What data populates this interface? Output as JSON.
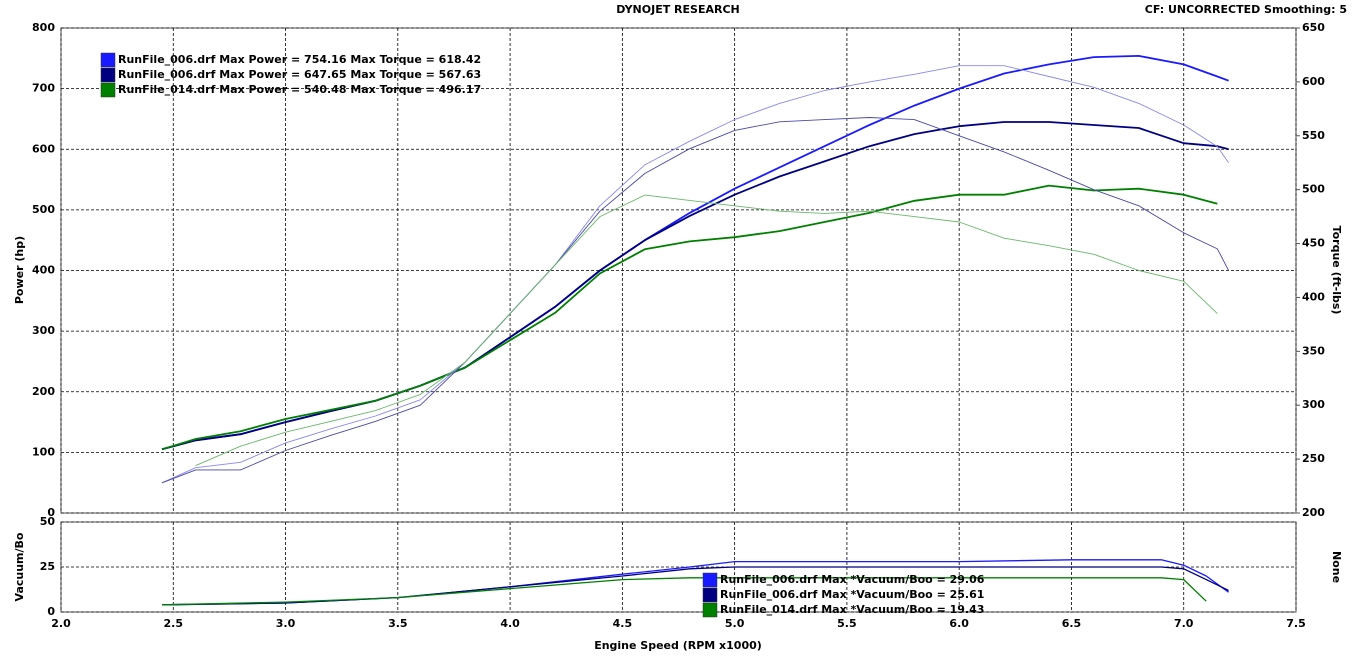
{
  "chart_data": [
    {
      "type": "line",
      "title": "DYNOJET RESEARCH",
      "subtitle": "CF: UNCORRECTED  Smoothing: 5",
      "ylabel": "Power (hp)",
      "y2label": "Torque (ft-lbs)",
      "xlim": [
        2,
        7.5
      ],
      "xticks": [
        2,
        2.5,
        3,
        3.5,
        4,
        4.5,
        5,
        5.5,
        6,
        6.5,
        7,
        7.5
      ],
      "ylim": [
        0,
        800
      ],
      "yticks": [
        0,
        100,
        200,
        300,
        400,
        500,
        600,
        700,
        800
      ],
      "y2lim": [
        200,
        650
      ],
      "y2ticks": [
        200,
        250,
        300,
        350,
        400,
        450,
        500,
        550,
        600,
        650
      ],
      "grid": true,
      "legend": [
        {
          "text": "RunFile_006.drf Max Power = 754.16 Max Torque = 618.42",
          "color": "#1a1aff"
        },
        {
          "text": "RunFile_006.drf Max Power = 647.65 Max Torque = 567.63",
          "color": "#000080"
        },
        {
          "text": "RunFile_014.drf Max Power = 540.48 Max Torque = 496.17",
          "color": "#008000"
        }
      ],
      "x": [
        2.45,
        2.6,
        2.8,
        3.0,
        3.2,
        3.4,
        3.6,
        3.8,
        4.0,
        4.2,
        4.4,
        4.6,
        4.8,
        5.0,
        5.2,
        5.4,
        5.6,
        5.8,
        6.0,
        6.2,
        6.4,
        6.6,
        6.8,
        7.0,
        7.15,
        7.2
      ],
      "series": [
        {
          "color": "#1a1aff",
          "values": [
            105,
            120,
            130,
            150,
            168,
            185,
            210,
            240,
            290,
            340,
            400,
            450,
            495,
            535,
            570,
            605,
            640,
            672,
            700,
            725,
            740,
            752,
            754,
            740,
            720,
            713
          ]
        },
        {
          "color": "#000080",
          "values": [
            105,
            120,
            130,
            150,
            168,
            185,
            210,
            240,
            290,
            340,
            400,
            450,
            490,
            525,
            555,
            580,
            605,
            625,
            638,
            645,
            645,
            640,
            635,
            610,
            605,
            600
          ]
        },
        {
          "color": "#008000",
          "values": [
            105,
            122,
            135,
            155,
            170,
            185,
            210,
            240,
            285,
            330,
            395,
            435,
            448,
            455,
            465,
            480,
            495,
            515,
            525,
            525,
            540,
            532,
            535,
            525,
            510,
            null
          ]
        },
        {
          "color": "#8888f0",
          "axis": "y2",
          "values": [
            228,
            242,
            247,
            265,
            278,
            290,
            305,
            340,
            385,
            430,
            485,
            523,
            545,
            565,
            580,
            592,
            600,
            607,
            615,
            615,
            605,
            595,
            580,
            560,
            540,
            525
          ]
        },
        {
          "color": "#4a4aa8",
          "axis": "y2",
          "values": [
            228,
            240,
            240,
            258,
            272,
            285,
            300,
            340,
            385,
            430,
            480,
            515,
            538,
            555,
            563,
            565,
            567,
            565,
            550,
            535,
            518,
            500,
            485,
            460,
            445,
            425
          ]
        },
        {
          "color": "#6ab86a",
          "axis": "y2",
          "values": [
            null,
            244,
            262,
            275,
            285,
            295,
            310,
            340,
            385,
            430,
            475,
            495,
            490,
            485,
            480,
            478,
            480,
            475,
            470,
            455,
            448,
            440,
            425,
            415,
            385,
            null
          ]
        }
      ]
    },
    {
      "type": "line",
      "ylabel": "Vacuum/Bo",
      "y2label": "None",
      "xlabel": "Engine Speed (RPM x1000)",
      "xlim": [
        2,
        7.5
      ],
      "xticks": [
        {
          "value": 2,
          "label": "2.0"
        },
        {
          "value": 2.5,
          "label": "2.5"
        },
        {
          "value": 3,
          "label": "3.0"
        },
        {
          "value": 3.5,
          "label": "3.5"
        },
        {
          "value": 4,
          "label": "4.0"
        },
        {
          "value": 4.5,
          "label": "4.5"
        },
        {
          "value": 5,
          "label": "5.0"
        },
        {
          "value": 5.5,
          "label": "5.5"
        },
        {
          "value": 6,
          "label": "6.0"
        },
        {
          "value": 6.5,
          "label": "6.5"
        },
        {
          "value": 7,
          "label": "7.0"
        },
        {
          "value": 7.5,
          "label": "7.5"
        }
      ],
      "ylim": [
        0,
        50
      ],
      "yticks": [
        0,
        25,
        50
      ],
      "grid": true,
      "legend": [
        {
          "text": "RunFile_006.drf Max *Vacuum/Boo = 29.06",
          "color": "#1a1aff"
        },
        {
          "text": "RunFile_006.drf Max *Vacuum/Boo = 25.61",
          "color": "#000080"
        },
        {
          "text": "RunFile_014.drf Max *Vacuum/Boo = 19.43",
          "color": "#008000"
        }
      ],
      "x": [
        2.45,
        3.0,
        3.5,
        4.0,
        4.5,
        4.8,
        5.0,
        5.5,
        6.0,
        6.5,
        6.9,
        7.0,
        7.1,
        7.2
      ],
      "series": [
        {
          "color": "#1a1aff",
          "values": [
            4,
            5,
            8,
            14,
            21,
            25,
            28,
            28,
            28,
            29,
            29,
            26,
            20,
            11
          ]
        },
        {
          "color": "#000080",
          "values": [
            4,
            5,
            8,
            14,
            20,
            24,
            25,
            25,
            25,
            25,
            25,
            24,
            18,
            12
          ]
        },
        {
          "color": "#008000",
          "values": [
            4,
            5.5,
            8,
            13,
            18,
            19,
            19,
            19,
            19,
            19,
            19,
            18,
            6,
            null
          ]
        }
      ]
    }
  ]
}
